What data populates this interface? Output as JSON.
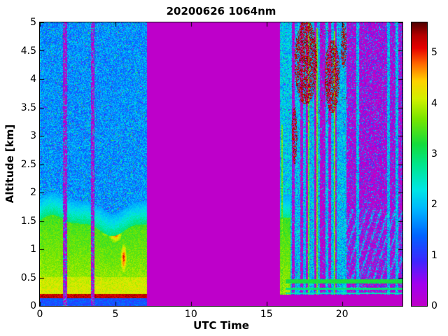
{
  "chart_data": {
    "type": "heatmap",
    "title": "20200626 1064nm",
    "xlabel": "UTC Time",
    "ylabel": "Altitude [km]",
    "xlim": [
      0,
      24
    ],
    "ylim": [
      0,
      5
    ],
    "x_ticks": [
      0,
      5,
      10,
      15,
      20
    ],
    "y_ticks": [
      0,
      0.5,
      1,
      1.5,
      2,
      2.5,
      3,
      3.5,
      4,
      4.5,
      5
    ],
    "colorbar": {
      "range": [
        0,
        5.6
      ],
      "ticks": [
        0,
        1,
        2,
        3,
        4,
        5
      ]
    },
    "colormap_stops": [
      [
        0.0,
        "#c000c8"
      ],
      [
        0.45,
        "#a000f0"
      ],
      [
        0.9,
        "#3c28ff"
      ],
      [
        1.4,
        "#0064ff"
      ],
      [
        1.9,
        "#00b4ff"
      ],
      [
        2.3,
        "#00e6e6"
      ],
      [
        2.8,
        "#00e68c"
      ],
      [
        3.2,
        "#14dc3c"
      ],
      [
        3.7,
        "#78e600"
      ],
      [
        4.1,
        "#d2f000"
      ],
      [
        4.45,
        "#ffd200"
      ],
      [
        4.8,
        "#ff6400"
      ],
      [
        5.1,
        "#e60000"
      ],
      [
        5.35,
        "#b40000"
      ],
      [
        5.6,
        "#500000"
      ]
    ],
    "segments": [
      {
        "t_range": [
          0,
          7.1
        ],
        "kind": "daytime_aerosol",
        "layer_top_km": 1.5,
        "dropout_stripes_utc": [
          [
            1.52,
            1.8
          ],
          [
            3.4,
            3.6
          ]
        ],
        "ground_line_km": 0.2,
        "red_spots": [
          {
            "t": 5.0,
            "z": 1.27
          },
          {
            "t": 5.55,
            "z": 0.85
          },
          {
            "t": 4.35,
            "z": 1.33
          }
        ],
        "notes": "green-yellow aerosol below ~1.5 km, blue noise speckle above, dark-red ground return line near 0.2 km"
      },
      {
        "t_range": [
          7.1,
          15.88
        ],
        "kind": "no_data",
        "value": 0,
        "notes": "uniform magenta block, instrument off"
      },
      {
        "t_range": [
          15.88,
          24
        ],
        "kind": "night_mixed",
        "aerosol_column_utc": [
          15.95,
          16.6
        ],
        "bright_vertical_lines_utc": [
          16.05,
          17.78,
          18.35,
          19.5
        ],
        "cloud_patches": [
          {
            "t": 17.6,
            "z": 4.3
          },
          {
            "t": 19.35,
            "z": 4.05
          },
          {
            "t": 16.85,
            "z": 3.0
          },
          {
            "t": 20.1,
            "z": 4.6
          }
        ],
        "horizontal_layers_km": [
          [
            0.4,
            0.47
          ],
          [
            0.28,
            0.325
          ],
          [
            0.205,
            0.235
          ]
        ],
        "notes": "alternating noisy cyan and blank magenta columns, dark-red cloud patches 3.2-5 km between 16.8-20.3 UTC, sparse pink/blue speckle after 20.3 UTC, thin green horizontal layers below 0.5 km"
      }
    ]
  }
}
